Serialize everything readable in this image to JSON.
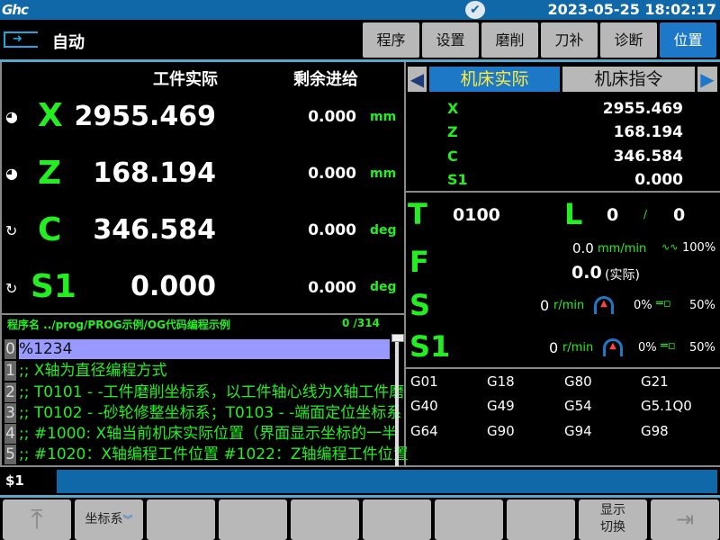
{
  "topbar": {
    "logo": "Ghc",
    "datetime": "2023-05-25 18:02:17"
  },
  "header": {
    "mode": "自动",
    "tabs": [
      {
        "label": "程序"
      },
      {
        "label": "设置"
      },
      {
        "label": "磨削"
      },
      {
        "label": "刀补"
      },
      {
        "label": "诊断"
      },
      {
        "label": "位置",
        "active": true
      }
    ]
  },
  "position": {
    "col_actual": "工件实际",
    "col_remaining": "剩余进给",
    "axes": [
      {
        "name": "X",
        "actual": "2955.469",
        "remaining": "0.000",
        "unit": "mm",
        "icon": "origin-icon"
      },
      {
        "name": "Z",
        "actual": "168.194",
        "remaining": "0.000",
        "unit": "mm",
        "icon": "origin-icon"
      },
      {
        "name": "C",
        "actual": "346.584",
        "remaining": "0.000",
        "unit": "deg",
        "icon": "rotate-icon"
      },
      {
        "name": "S1",
        "actual": "0.000",
        "remaining": "0.000",
        "unit": "deg",
        "icon": "rotate-icon"
      }
    ]
  },
  "program": {
    "name": "程序名 ../prog/PROG示例/OG代码编程示例",
    "count": "0 /314",
    "lines": [
      {
        "n": "0",
        "text": "%1234"
      },
      {
        "n": "1",
        "text": ";; X轴为直径编程方式"
      },
      {
        "n": "2",
        "text": ";; T0101 - -工件磨削坐标系，以工件轴心线为X轴工件磨"
      },
      {
        "n": "3",
        "text": ";; T0102 - -砂轮修整坐标系；T0103 - -端面定位坐标系"
      },
      {
        "n": "4",
        "text": ";; #1000: X轴当前机床实际位置（界面显示坐标的一半"
      },
      {
        "n": "5",
        "text": ";; #1020：X轴编程工件位置  #1022：Z轴编程工件位置"
      }
    ]
  },
  "machine": {
    "tab_active": "机床实际",
    "tab_other": "机床指令",
    "axes": [
      {
        "name": "X",
        "value": "2955.469"
      },
      {
        "name": "Z",
        "value": "168.194"
      },
      {
        "name": "C",
        "value": "346.584"
      },
      {
        "name": "S1",
        "value": "0.000"
      }
    ]
  },
  "status": {
    "T_label": "T",
    "T": "0100",
    "L_label": "L",
    "L1": "0",
    "L_sep": "/",
    "L2": "0",
    "F_label": "F",
    "F_cmd": "0.0",
    "F_unit": "mm/min",
    "F_override": "100%",
    "F_actual": "0.0",
    "F_actual_label": "(实际)",
    "S_label": "S",
    "S_speed": "0",
    "S_unit": "r/min",
    "S_load": "0%",
    "S_override": "50%",
    "S1_label": "S1",
    "S1_speed": "0",
    "S1_unit": "r/min",
    "S1_load": "0%",
    "S1_override": "50%"
  },
  "gcodes": [
    "G01",
    "G18",
    "G80",
    "G21",
    "G40",
    "G49",
    "G54",
    "G5.1Q0",
    "G64",
    "G90",
    "G94",
    "G98"
  ],
  "command": {
    "label": "$1",
    "value": ""
  },
  "softkeys": [
    {
      "label": "",
      "icon": "arrow-up-icon"
    },
    {
      "label": "坐标系",
      "icon": "chevron-double-down-icon"
    },
    {
      "label": ""
    },
    {
      "label": ""
    },
    {
      "label": ""
    },
    {
      "label": ""
    },
    {
      "label": ""
    },
    {
      "label": ""
    },
    {
      "label": "显示\n切换"
    },
    {
      "label": "",
      "icon": "arrow-right-bar-icon"
    }
  ],
  "colors": {
    "accent": "#1e78c8",
    "topbar": "#1068a8",
    "text_green": "#22ee22",
    "highlight": "#9999ff",
    "button": "#b8b8b8"
  }
}
